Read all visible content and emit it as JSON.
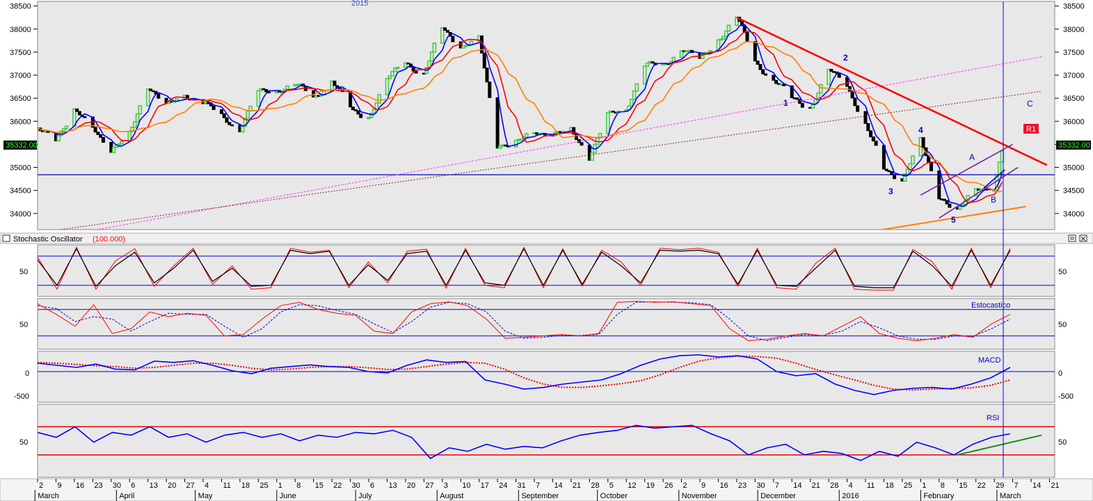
{
  "price_panel": {
    "year_label": "2015",
    "current_price_label": "35332.00",
    "y_ticks": [
      34000,
      34500,
      35000,
      35500,
      36000,
      36500,
      37000,
      37500,
      38000,
      38500
    ],
    "wave_labels": [
      "1",
      "2",
      "3",
      "4",
      "5",
      "A",
      "B",
      "C"
    ],
    "r1_label": "R1"
  },
  "stochastic_panel": {
    "title": "Stochastic Oscillator",
    "title_value": "(100.000)",
    "tick": "50"
  },
  "estocastico_panel": {
    "label": "Estocastico",
    "tick": "50"
  },
  "macd_panel": {
    "label": "MACD",
    "ticks": [
      "0",
      "-500"
    ]
  },
  "rsi_panel": {
    "label": "RSI",
    "tick": "50"
  },
  "x_axis": {
    "day_ticks": [
      "2",
      "9",
      "16",
      "23",
      "30",
      "6",
      "13",
      "20",
      "27",
      "4",
      "11",
      "18",
      "25",
      "1",
      "8",
      "15",
      "22",
      "30",
      "6",
      "13",
      "20",
      "27",
      "3",
      "10",
      "17",
      "24",
      "31",
      "7",
      "14",
      "21",
      "28",
      "5",
      "12",
      "19",
      "26",
      "2",
      "9",
      "16",
      "23",
      "30",
      "7",
      "14",
      "21",
      "28",
      "4",
      "11",
      "18",
      "25",
      "1",
      "8",
      "15",
      "22",
      "29",
      "7",
      "14",
      "21"
    ],
    "month_labels": [
      "March",
      "April",
      "May",
      "June",
      "July",
      "August",
      "September",
      "October",
      "November",
      "December",
      "2016",
      "February",
      "March"
    ]
  },
  "colors": {
    "price_up": "#44cc44",
    "price_down": "#000000",
    "ma_fast": "#0000ff",
    "ma_mid": "#ff0000",
    "ma_slow": "#ff7f00",
    "trend_red": "#ff0000",
    "channel_purple": "#7a1fa2",
    "dotted_magenta": "#ff33ff",
    "dotted_brown": "#8b2323",
    "label_blue": "#0000cc"
  },
  "chart_data": [
    {
      "type": "candlestick",
      "title": "",
      "ylim": [
        33650,
        38600
      ],
      "x_range_label": "March 2015 – March 2016 (daily)",
      "close_path": [
        [
          "2015-03-02",
          35800
        ],
        [
          "2015-03-09",
          35650
        ],
        [
          "2015-03-16",
          36200
        ],
        [
          "2015-03-23",
          35900
        ],
        [
          "2015-03-30",
          35350
        ],
        [
          "2015-04-06",
          35700
        ],
        [
          "2015-04-13",
          36800
        ],
        [
          "2015-04-20",
          36300
        ],
        [
          "2015-04-27",
          36600
        ],
        [
          "2015-05-04",
          36400
        ],
        [
          "2015-05-11",
          36100
        ],
        [
          "2015-05-18",
          35850
        ],
        [
          "2015-05-25",
          36600
        ],
        [
          "2015-06-01",
          36700
        ],
        [
          "2015-06-08",
          36800
        ],
        [
          "2015-06-15",
          36500
        ],
        [
          "2015-06-22",
          36900
        ],
        [
          "2015-06-30",
          36200
        ],
        [
          "2015-07-06",
          36100
        ],
        [
          "2015-07-13",
          36900
        ],
        [
          "2015-07-20",
          37300
        ],
        [
          "2015-07-27",
          37000
        ],
        [
          "2015-08-03",
          38050
        ],
        [
          "2015-08-10",
          37600
        ],
        [
          "2015-08-17",
          37800
        ],
        [
          "2015-08-24",
          35500
        ],
        [
          "2015-08-31",
          35500
        ],
        [
          "2015-09-07",
          35800
        ],
        [
          "2015-09-14",
          35700
        ],
        [
          "2015-09-21",
          35800
        ],
        [
          "2015-09-28",
          35250
        ],
        [
          "2015-10-05",
          36100
        ],
        [
          "2015-10-12",
          36300
        ],
        [
          "2015-10-19",
          37200
        ],
        [
          "2015-10-26",
          37200
        ],
        [
          "2015-11-02",
          37600
        ],
        [
          "2015-11-09",
          37300
        ],
        [
          "2015-11-16",
          37800
        ],
        [
          "2015-11-23",
          38250
        ],
        [
          "2015-11-30",
          37300
        ],
        [
          "2015-12-07",
          36900
        ],
        [
          "2015-12-14",
          36500
        ],
        [
          "2015-12-21",
          36300
        ],
        [
          "2015-12-28",
          37100
        ],
        [
          "2016-01-04",
          36800
        ],
        [
          "2016-01-11",
          35900
        ],
        [
          "2016-01-18",
          35000
        ],
        [
          "2016-01-25",
          34700
        ],
        [
          "2016-02-01",
          35600
        ],
        [
          "2016-02-08",
          34400
        ],
        [
          "2016-02-15",
          34000
        ],
        [
          "2016-02-22",
          34600
        ],
        [
          "2016-02-29",
          34500
        ],
        [
          "2016-03-03",
          35332
        ]
      ],
      "series": [
        {
          "name": "",
          "role": "fast moving average"
        },
        {
          "name": "",
          "role": "medium moving average"
        },
        {
          "name": "",
          "role": "slow moving average"
        }
      ],
      "horizontal_line": 34840,
      "last_value": 35332
    },
    {
      "type": "line",
      "title": "Stochastic Oscillator (100.000)",
      "ylim": [
        0,
        100
      ],
      "levels": [
        80,
        20
      ],
      "series": [
        {
          "name": "",
          "values": [
            72,
            20,
            95,
            18,
            60,
            88,
            25,
            55,
            92,
            28,
            55,
            18,
            20,
            92,
            85,
            90,
            20,
            62,
            30,
            85,
            90,
            20,
            92,
            25,
            20,
            95,
            20,
            92,
            22,
            88,
            60,
            25,
            92,
            90,
            92,
            85,
            22,
            92,
            20,
            18,
            55,
            92,
            18,
            15,
            15,
            90,
            60,
            18,
            92,
            20,
            92
          ]
        },
        {
          "name": "",
          "values": [
            78,
            12,
            98,
            12,
            70,
            95,
            18,
            60,
            96,
            22,
            60,
            12,
            15,
            96,
            88,
            92,
            15,
            68,
            25,
            90,
            94,
            14,
            96,
            20,
            15,
            98,
            15,
            95,
            18,
            92,
            68,
            20,
            96,
            93,
            96,
            88,
            18,
            96,
            15,
            12,
            65,
            96,
            12,
            10,
            10,
            94,
            68,
            12,
            96,
            15,
            96
          ]
        }
      ]
    },
    {
      "type": "line",
      "title": "Estocastico",
      "ylim": [
        0,
        100
      ],
      "levels": [
        80,
        25
      ],
      "series": [
        {
          "name": "",
          "values": [
            92,
            70,
            45,
            90,
            30,
            40,
            75,
            65,
            72,
            68,
            25,
            28,
            60,
            88,
            95,
            80,
            72,
            68,
            35,
            30,
            75,
            92,
            96,
            88,
            60,
            20,
            22,
            25,
            28,
            25,
            30,
            95,
            97,
            95,
            96,
            92,
            88,
            40,
            15,
            18,
            25,
            30,
            25,
            45,
            65,
            30,
            20,
            15,
            20,
            28,
            22,
            50,
            70
          ]
        },
        {
          "name": "",
          "values": [
            88,
            82,
            55,
            65,
            60,
            35,
            55,
            72,
            70,
            70,
            45,
            22,
            40,
            75,
            90,
            88,
            78,
            70,
            50,
            32,
            55,
            85,
            95,
            92,
            75,
            35,
            20,
            22,
            26,
            26,
            28,
            70,
            95,
            96,
            95,
            94,
            90,
            60,
            25,
            15,
            22,
            28,
            26,
            35,
            55,
            42,
            25,
            18,
            18,
            25,
            24,
            40,
            60
          ]
        }
      ]
    },
    {
      "type": "line",
      "title": "MACD",
      "ylim": [
        -700,
        450
      ],
      "series": [
        {
          "name": "",
          "values": [
            200,
            150,
            100,
            180,
            60,
            40,
            250,
            220,
            260,
            150,
            20,
            -50,
            80,
            120,
            160,
            120,
            100,
            0,
            -30,
            150,
            280,
            220,
            240,
            -200,
            -300,
            -420,
            -380,
            -300,
            -250,
            -200,
            -50,
            150,
            300,
            380,
            400,
            350,
            380,
            300,
            0,
            -100,
            -50,
            -300,
            -450,
            -550,
            -450,
            -400,
            -380,
            -420,
            -300,
            -150,
            100
          ]
        },
        {
          "name": "",
          "values": [
            220,
            200,
            170,
            140,
            120,
            80,
            100,
            150,
            200,
            200,
            150,
            80,
            40,
            60,
            100,
            120,
            120,
            90,
            50,
            60,
            120,
            180,
            220,
            200,
            60,
            -150,
            -300,
            -380,
            -380,
            -340,
            -290,
            -220,
            -80,
            100,
            250,
            330,
            370,
            360,
            320,
            200,
            50,
            -80,
            -200,
            -330,
            -420,
            -440,
            -420,
            -400,
            -390,
            -330,
            -200
          ]
        }
      ]
    },
    {
      "type": "line",
      "title": "RSI",
      "ylim": [
        0,
        100
      ],
      "levels": [
        70,
        30
      ],
      "series": [
        {
          "name": "",
          "values": [
            62,
            55,
            70,
            48,
            62,
            58,
            70,
            55,
            60,
            48,
            58,
            62,
            55,
            60,
            50,
            58,
            55,
            62,
            60,
            65,
            55,
            25,
            40,
            35,
            45,
            38,
            42,
            40,
            50,
            58,
            62,
            65,
            72,
            68,
            70,
            72,
            60,
            50,
            30,
            40,
            45,
            30,
            35,
            32,
            22,
            35,
            28,
            48,
            40,
            30,
            45,
            55,
            60
          ]
        },
        {
          "name": "",
          "role": "RSI trendline",
          "values": [
            30,
            58
          ]
        }
      ]
    }
  ]
}
